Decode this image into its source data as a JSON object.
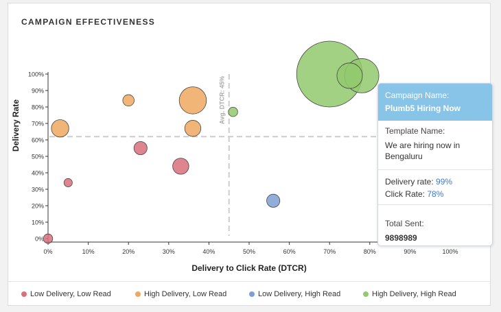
{
  "card": {
    "title": "CAMPAIGN EFFECTIVENESS"
  },
  "colors": {
    "low_delivery_low_read": "#d9707b",
    "high_delivery_low_read": "#f0a860",
    "low_delivery_high_read": "#7e9fd4",
    "high_delivery_high_read": "#93c96f"
  },
  "chart_data": {
    "type": "scatter",
    "title": "CAMPAIGN EFFECTIVENESS",
    "xlabel": "Delivery to Click Rate (DTCR)",
    "ylabel": "Delivery Rate",
    "xlim": [
      0,
      100
    ],
    "ylim": [
      0,
      100
    ],
    "x_ticks": [
      "0%",
      "10%",
      "20%",
      "30%",
      "40%",
      "50%",
      "60%",
      "70%",
      "80%",
      "90%",
      "100%"
    ],
    "y_ticks": [
      "0%",
      "10%",
      "20%",
      "30%",
      "40%",
      "50%",
      "60%",
      "70%",
      "80%",
      "90%",
      "100%"
    ],
    "reference_lines": [
      {
        "axis": "x",
        "value": 45,
        "label": "Avg. DTCR: 45%"
      },
      {
        "axis": "y",
        "value": 62,
        "label": ""
      }
    ],
    "series": [
      {
        "name": "Low Delivery, Low Read",
        "color": "#d9707b",
        "points": [
          {
            "x": 0,
            "y": 0,
            "size": 2
          },
          {
            "x": 5,
            "y": 34,
            "size": 1.6
          },
          {
            "x": 23,
            "y": 55,
            "size": 4
          },
          {
            "x": 33,
            "y": 44,
            "size": 6
          }
        ]
      },
      {
        "name": "High Delivery, Low Read",
        "color": "#f0a860",
        "points": [
          {
            "x": 3,
            "y": 67,
            "size": 7
          },
          {
            "x": 20,
            "y": 84,
            "size": 3
          },
          {
            "x": 36,
            "y": 84,
            "size": 17
          },
          {
            "x": 36,
            "y": 67,
            "size": 6
          }
        ]
      },
      {
        "name": "Low Delivery, High Read",
        "color": "#7e9fd4",
        "points": [
          {
            "x": 56,
            "y": 23,
            "size": 4
          }
        ]
      },
      {
        "name": "High Delivery, High Read",
        "color": "#93c96f",
        "points": [
          {
            "x": 46,
            "y": 77,
            "size": 2
          },
          {
            "x": 70,
            "y": 100,
            "size": 100
          },
          {
            "x": 75,
            "y": 99,
            "size": 15
          },
          {
            "x": 78,
            "y": 99,
            "size": 27
          }
        ]
      }
    ]
  },
  "legend": [
    {
      "label": "Low Delivery, Low Read",
      "color": "#d9707b"
    },
    {
      "label": "High Delivery, Low Read",
      "color": "#f0a860"
    },
    {
      "label": "Low Delivery, High Read",
      "color": "#7e9fd4"
    },
    {
      "label": "High Delivery, High Read",
      "color": "#93c96f"
    }
  ],
  "tooltip": {
    "campaign_label": "Campaign Name:",
    "campaign_value": "Plumb5 Hiring Now",
    "template_label": "Template Name:",
    "template_value": "We are hiring now in Bengaluru",
    "delivery_label": "Delivery rate:",
    "delivery_value": "99%",
    "click_label": "Click Rate:",
    "click_value": "78%",
    "total_label": "Total Sent:",
    "total_value": "9898989"
  }
}
